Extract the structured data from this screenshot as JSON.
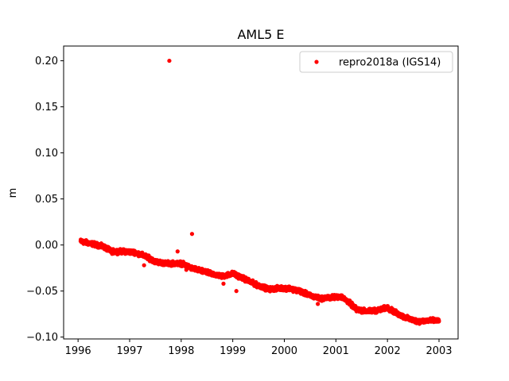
{
  "chart_data": {
    "type": "scatter",
    "title": "AML5 E",
    "xlabel": "",
    "ylabel": "m",
    "xlim": [
      1995.72,
      2003.37
    ],
    "ylim": [
      -0.102,
      0.216
    ],
    "xticks": [
      1996,
      1997,
      1998,
      1999,
      2000,
      2001,
      2002,
      2003
    ],
    "yticks": [
      -0.1,
      -0.05,
      0.0,
      0.05,
      0.1,
      0.15,
      0.2
    ],
    "ytick_labels": [
      "−0.10",
      "−0.05",
      "0.00",
      "0.05",
      "0.10",
      "0.15",
      "0.20"
    ],
    "grid": false,
    "legend_position": "top-right",
    "series": [
      {
        "name": "repro2018a (IGS14)",
        "color": "#ff0000",
        "marker": "circle",
        "trend": [
          [
            1996.05,
            0.004
          ],
          [
            1996.3,
            0.001
          ],
          [
            1996.5,
            -0.002
          ],
          [
            1996.65,
            -0.007
          ],
          [
            1996.9,
            -0.007
          ],
          [
            1997.1,
            -0.008
          ],
          [
            1997.3,
            -0.012
          ],
          [
            1997.5,
            -0.018
          ],
          [
            1997.7,
            -0.02
          ],
          [
            1998.0,
            -0.02
          ],
          [
            1998.2,
            -0.025
          ],
          [
            1998.5,
            -0.03
          ],
          [
            1998.8,
            -0.034
          ],
          [
            1999.0,
            -0.031
          ],
          [
            1999.2,
            -0.036
          ],
          [
            1999.45,
            -0.043
          ],
          [
            1999.7,
            -0.048
          ],
          [
            1999.9,
            -0.047
          ],
          [
            2000.1,
            -0.047
          ],
          [
            2000.3,
            -0.05
          ],
          [
            2000.5,
            -0.055
          ],
          [
            2000.7,
            -0.058
          ],
          [
            2000.9,
            -0.057
          ],
          [
            2001.1,
            -0.056
          ],
          [
            2001.25,
            -0.062
          ],
          [
            2001.4,
            -0.07
          ],
          [
            2001.6,
            -0.072
          ],
          [
            2001.8,
            -0.071
          ],
          [
            2002.0,
            -0.068
          ],
          [
            2002.2,
            -0.075
          ],
          [
            2002.4,
            -0.08
          ],
          [
            2002.6,
            -0.083
          ],
          [
            2002.8,
            -0.082
          ],
          [
            2003.0,
            -0.082
          ]
        ],
        "outliers": [
          [
            1997.77,
            0.2
          ],
          [
            1998.21,
            0.012
          ],
          [
            1997.93,
            -0.007
          ],
          [
            1999.07,
            -0.05
          ],
          [
            1997.28,
            -0.022
          ],
          [
            1998.82,
            -0.042
          ],
          [
            1998.1,
            -0.027
          ],
          [
            2000.65,
            -0.064
          ]
        ]
      }
    ]
  }
}
